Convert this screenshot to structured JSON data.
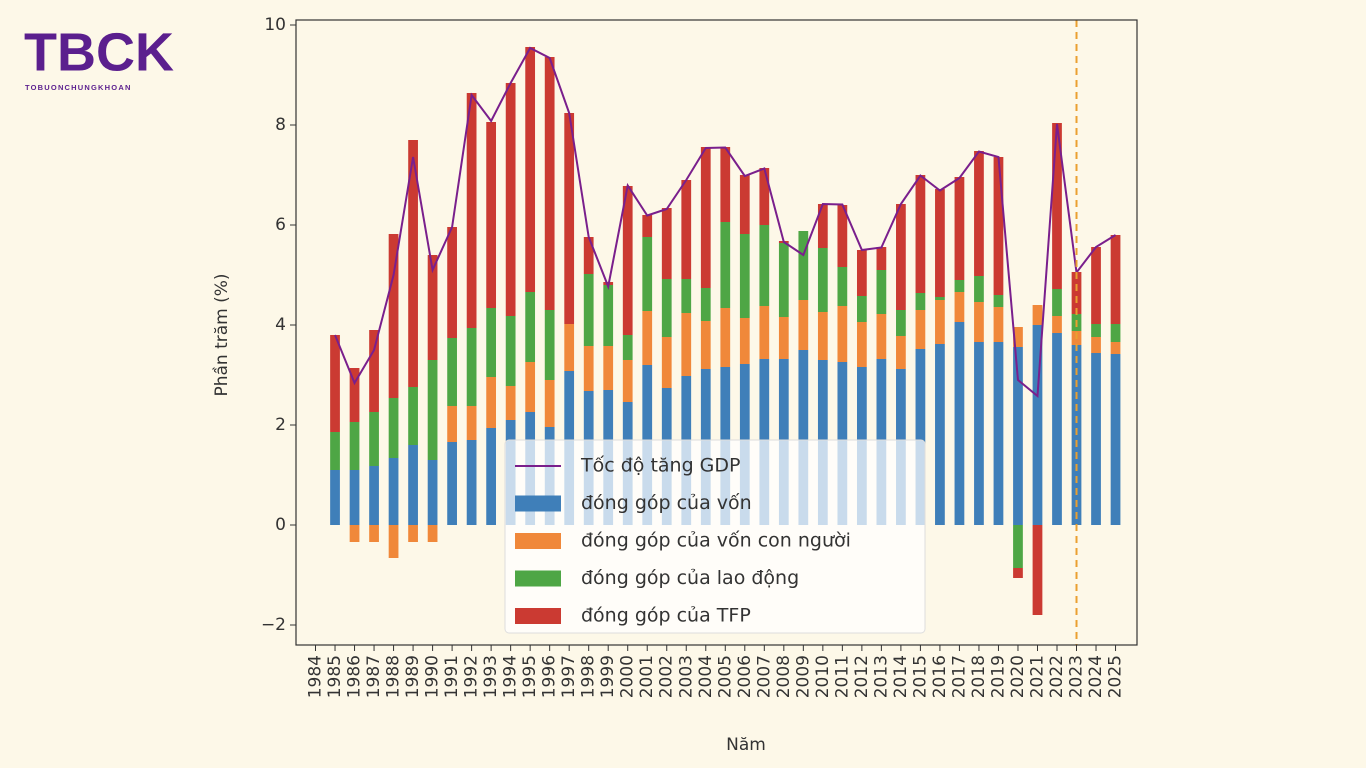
{
  "logo": {
    "text": "TBCK",
    "tagline": "TOBUONCHUNGKHOAN"
  },
  "chart_data": {
    "type": "bar",
    "stacked": true,
    "x_label": "Năm",
    "y_label": "Phần trăm (%)",
    "x": [
      1985,
      1986,
      1987,
      1988,
      1989,
      1990,
      1991,
      1992,
      1993,
      1994,
      1995,
      1996,
      1997,
      1998,
      1999,
      2000,
      2001,
      2002,
      2003,
      2004,
      2005,
      2006,
      2007,
      2008,
      2009,
      2010,
      2011,
      2012,
      2013,
      2014,
      2015,
      2016,
      2017,
      2018,
      2019,
      2020,
      2021,
      2022,
      2023,
      2024,
      2025
    ],
    "xlim": [
      1983,
      2026.1
    ],
    "xticks": [
      1984,
      1985,
      1986,
      1987,
      1988,
      1989,
      1990,
      1991,
      1992,
      1993,
      1994,
      1995,
      1996,
      1997,
      1998,
      1999,
      2000,
      2001,
      2002,
      2003,
      2004,
      2005,
      2006,
      2007,
      2008,
      2009,
      2010,
      2011,
      2012,
      2013,
      2014,
      2015,
      2016,
      2017,
      2018,
      2019,
      2020,
      2021,
      2022,
      2023,
      2024,
      2025
    ],
    "ylim": [
      -2.4,
      10.1
    ],
    "yticks": [
      {
        "value": -2,
        "label": "−2"
      },
      0,
      2,
      4,
      6,
      8,
      10
    ],
    "vline": {
      "x": 2023,
      "color": "#eaa030",
      "style": "dashed"
    },
    "legend": "lower center",
    "series": [
      {
        "name": "Tốc độ tăng GDP",
        "type": "line",
        "color": "#7a1f8c",
        "values": [
          3.8,
          2.84,
          3.5,
          5.0,
          7.36,
          5.1,
          5.96,
          8.6,
          8.08,
          8.84,
          9.54,
          9.34,
          8.24,
          5.76,
          4.77,
          6.79,
          6.19,
          6.32,
          6.9,
          7.54,
          7.55,
          6.98,
          7.13,
          5.66,
          5.4,
          6.42,
          6.41,
          5.5,
          5.55,
          6.42,
          6.99,
          6.69,
          6.94,
          7.47,
          7.36,
          2.9,
          2.58,
          8.02,
          5.05,
          5.56,
          5.8
        ]
      },
      {
        "name": "đóng góp của vốn",
        "type": "bar",
        "color": "#3f7fb9",
        "values": [
          1.1,
          1.1,
          1.18,
          1.34,
          1.6,
          1.3,
          1.66,
          1.7,
          1.94,
          2.1,
          2.26,
          1.96,
          3.08,
          2.68,
          2.7,
          2.46,
          3.2,
          2.74,
          2.98,
          3.12,
          3.16,
          3.22,
          3.32,
          3.32,
          3.5,
          3.3,
          3.26,
          3.16,
          3.32,
          3.12,
          3.52,
          3.62,
          4.06,
          3.66,
          3.66,
          3.56,
          4.0,
          3.84,
          3.6,
          3.44,
          3.42
        ]
      },
      {
        "name": "đóng góp của vốn con người",
        "type": "bar",
        "color": "#f0883a",
        "values": [
          0,
          -0.34,
          -0.34,
          -0.66,
          -0.34,
          -0.34,
          0.72,
          0.68,
          1.02,
          0.68,
          1.0,
          0.94,
          0.94,
          0.9,
          0.88,
          0.84,
          1.08,
          1.02,
          1.26,
          0.96,
          1.18,
          0.92,
          1.06,
          0.84,
          1.0,
          0.96,
          1.12,
          0.9,
          0.9,
          0.66,
          0.78,
          0.88,
          0.6,
          0.8,
          0.7,
          0.4,
          0.4,
          0.34,
          0.28,
          0.32,
          0.24
        ]
      },
      {
        "name": "đóng góp của lao động",
        "type": "bar",
        "color": "#4ea645",
        "values": [
          0.76,
          0.96,
          1.08,
          1.2,
          1.16,
          2.0,
          1.36,
          1.56,
          1.38,
          1.4,
          1.4,
          1.4,
          0,
          1.44,
          1.22,
          0.5,
          1.48,
          1.16,
          0.68,
          0.66,
          1.72,
          1.68,
          1.62,
          1.48,
          1.38,
          1.28,
          0.78,
          0.52,
          0.88,
          0.52,
          0.34,
          0.06,
          0.24,
          0.52,
          0.24,
          -0.86,
          0,
          0.54,
          0.34,
          0.26,
          0.36
        ]
      },
      {
        "name": "đóng góp của TFP",
        "type": "bar",
        "color": "#cb3a32",
        "values": [
          1.94,
          1.08,
          1.64,
          3.28,
          4.94,
          2.1,
          2.22,
          4.7,
          3.72,
          4.66,
          4.9,
          5.06,
          4.22,
          0.74,
          0.06,
          2.98,
          0.44,
          1.42,
          1.98,
          2.82,
          1.5,
          1.18,
          1.14,
          0.04,
          0,
          0.88,
          1.24,
          0.92,
          0.46,
          2.12,
          2.36,
          2.16,
          2.06,
          2.5,
          2.76,
          -0.2,
          -1.8,
          3.32,
          0.84,
          1.54,
          1.78
        ]
      }
    ]
  }
}
